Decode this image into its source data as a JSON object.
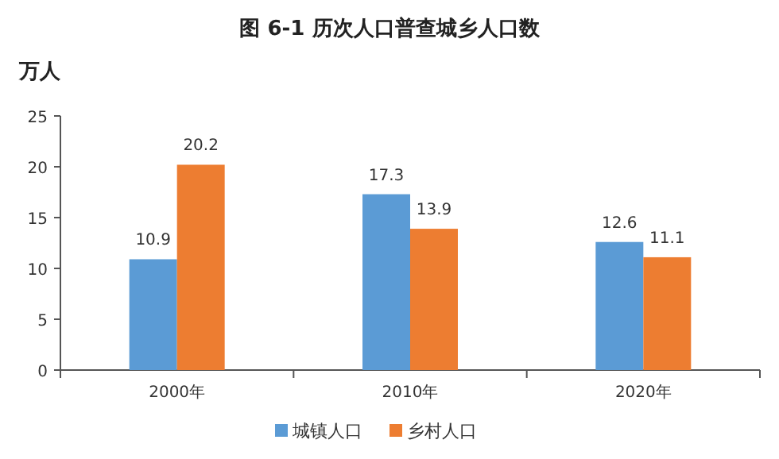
{
  "chart_data": {
    "type": "bar",
    "title": "图 6-1  历次人口普查城乡人口数",
    "ylabel": "万人",
    "categories": [
      "2000年",
      "2010年",
      "2020年"
    ],
    "series": [
      {
        "name": "城镇人口",
        "color": "#5b9bd5",
        "values": [
          10.9,
          17.3,
          12.6
        ]
      },
      {
        "name": "乡村人口",
        "color": "#ed7d31",
        "values": [
          20.2,
          13.9,
          11.1
        ]
      }
    ],
    "ylim": [
      0,
      25
    ],
    "yticks": [
      0,
      5,
      10,
      15,
      20,
      25
    ],
    "data_labels": true,
    "legend": "bottom"
  }
}
